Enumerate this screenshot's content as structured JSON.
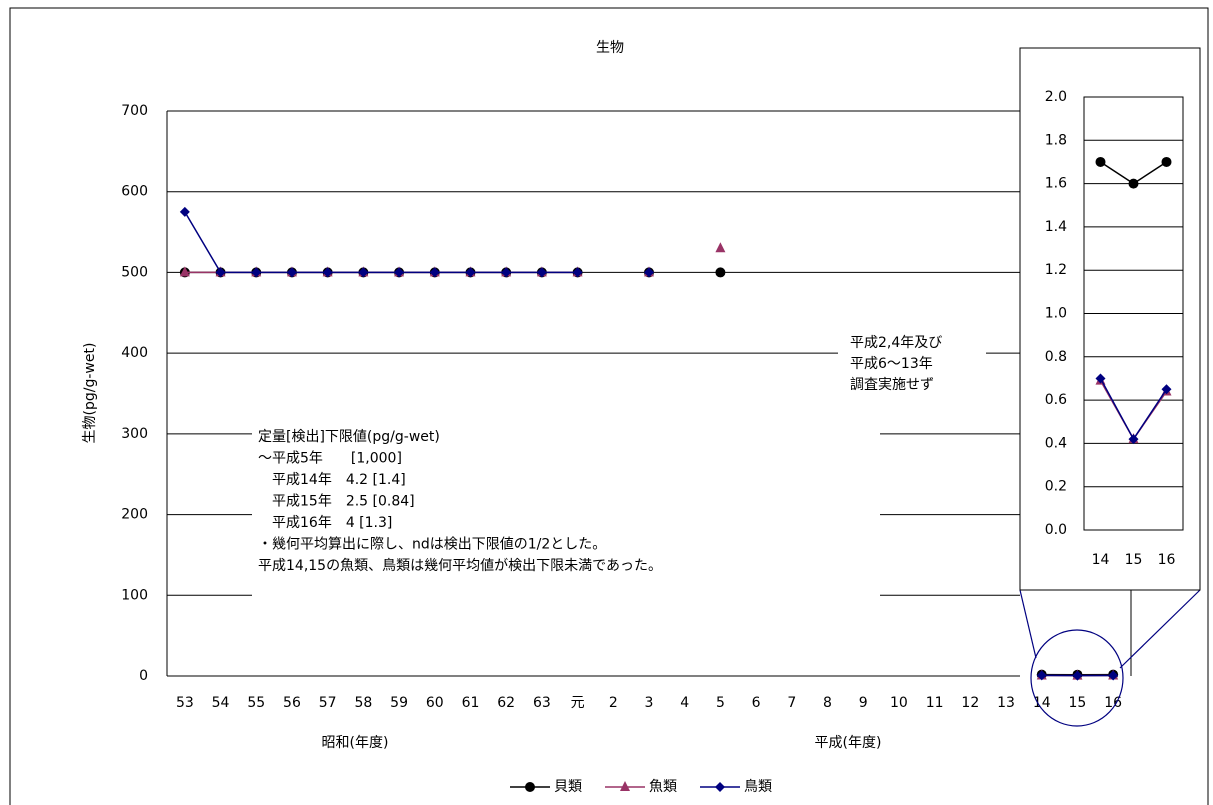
{
  "chart_data": {
    "type": "line",
    "title": "生物",
    "y_label": "生物(pg/g-wet)",
    "x_group_labels": [
      "昭和(年度)",
      "平成(年度)"
    ],
    "categories": [
      "53",
      "54",
      "55",
      "56",
      "57",
      "58",
      "59",
      "60",
      "61",
      "62",
      "63",
      "元",
      "2",
      "3",
      "4",
      "5",
      "6",
      "7",
      "8",
      "9",
      "10",
      "11",
      "12",
      "13",
      "14",
      "15",
      "16"
    ],
    "ylim": [
      0,
      700
    ],
    "yticks": [
      0,
      100,
      200,
      300,
      400,
      500,
      600,
      700
    ],
    "grid": true,
    "series": [
      {
        "name": "貝類",
        "color": "#000000",
        "marker": "circle",
        "values": [
          500,
          500,
          500,
          500,
          500,
          500,
          500,
          500,
          500,
          500,
          500,
          500,
          null,
          500,
          null,
          500,
          null,
          null,
          null,
          null,
          null,
          null,
          null,
          null,
          1.7,
          1.6,
          1.7
        ]
      },
      {
        "name": "魚類",
        "color": "#993366",
        "marker": "triangle",
        "values": [
          500,
          500,
          500,
          500,
          500,
          500,
          500,
          500,
          500,
          500,
          500,
          500,
          null,
          500,
          null,
          530,
          null,
          null,
          null,
          null,
          null,
          null,
          null,
          null,
          0.69,
          0.42,
          0.64
        ]
      },
      {
        "name": "鳥類",
        "color": "#000080",
        "marker": "diamond",
        "values": [
          575,
          500,
          500,
          500,
          500,
          500,
          500,
          500,
          500,
          500,
          500,
          500,
          null,
          500,
          null,
          null,
          null,
          null,
          null,
          null,
          null,
          null,
          null,
          null,
          0.7,
          0.42,
          0.65
        ]
      }
    ],
    "inset": {
      "ylim": [
        0,
        2
      ],
      "yticks": [
        {
          "value": 0,
          "label": "0.0"
        },
        0.2,
        0.4,
        0.6,
        0.8,
        {
          "value": 1,
          "label": "1.0"
        },
        1.2,
        1.4,
        1.6,
        1.8,
        {
          "value": 2,
          "label": "2.0"
        }
      ]
    },
    "annotations": {
      "not_surveyed": [
        "平成2,4年及び",
        "平成6～13年",
        "調査実施せず"
      ],
      "note": [
        "定量[検出]下限値(pg/g-wet)",
        "～平成5年　　[1,000]",
        "　平成14年　4.2 [1.4]",
        "　平成15年　2.5 [0.84]",
        "　平成16年　4 [1.3]",
        "・幾何平均算出に際し、ndは検出下限値の1/2とした。",
        "平成14,15の魚類、鳥類は幾何平均値が検出下限未満であった。"
      ]
    }
  }
}
